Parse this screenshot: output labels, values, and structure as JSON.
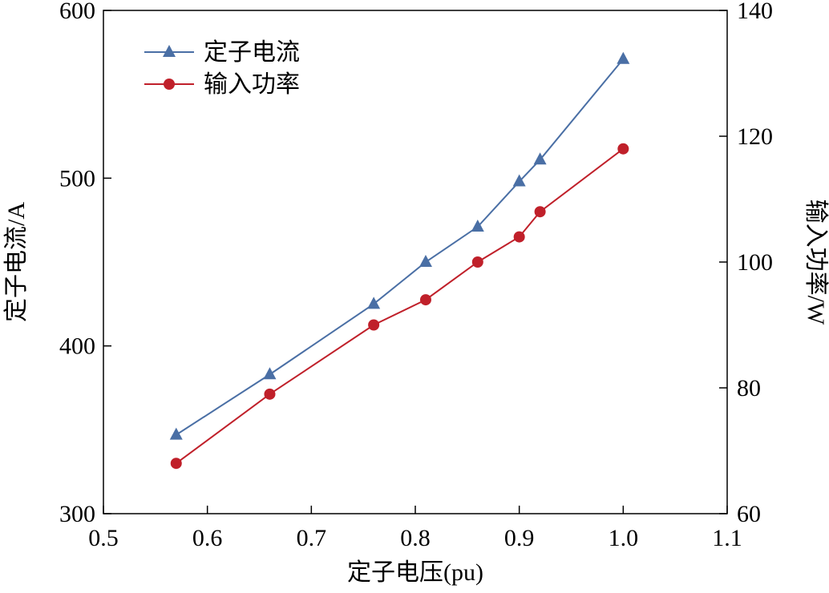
{
  "chart_data": {
    "type": "line",
    "x_label": "定子电压(pu)",
    "y_label": "定子电流/A",
    "y2_label": "输入功率/W",
    "x": [
      0.57,
      0.66,
      0.76,
      0.81,
      0.86,
      0.9,
      0.92,
      1.0
    ],
    "xlim": [
      0.5,
      1.1
    ],
    "xticks": [
      0.5,
      0.6,
      0.7,
      0.8,
      0.9,
      {
        "value": 1.0,
        "label": "1.0"
      },
      1.1
    ],
    "ylim": [
      300,
      600
    ],
    "yticks": [
      300,
      400,
      500,
      600
    ],
    "y2lim": [
      60,
      140
    ],
    "y2ticks": [
      60,
      80,
      100,
      120,
      140
    ],
    "legend": "upper left",
    "series": [
      {
        "name": "定子电流",
        "color": "#4a6fa5",
        "marker": "triangle",
        "values": [
          347,
          383,
          425,
          450,
          471,
          498,
          511,
          571
        ]
      },
      {
        "name": "输入功率",
        "color": "#c0202a",
        "marker": "circle",
        "axis": "y2",
        "values": [
          68,
          79,
          90,
          94,
          100,
          104,
          108,
          118
        ]
      }
    ]
  }
}
